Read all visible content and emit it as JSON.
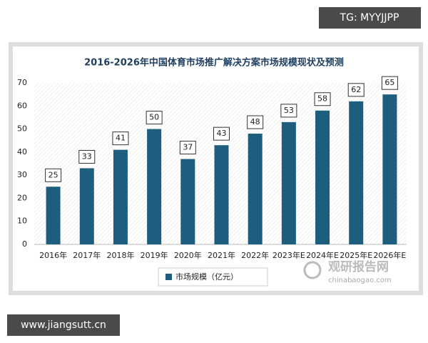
{
  "chart_data": {
    "type": "bar",
    "title": "2016-2026年中国体育市场推广解决方案市场规模现状及预测",
    "categories": [
      "2016年",
      "2017年",
      "2018年",
      "2019年",
      "2020年",
      "2021年",
      "2022年",
      "2023年E",
      "2024年E",
      "2025年E",
      "2026年E"
    ],
    "series": [
      {
        "name": "市场规模（亿元）",
        "color": "#1d5e7e",
        "values": [
          25,
          33,
          41,
          50,
          37,
          43,
          48,
          53,
          58,
          62,
          65
        ]
      }
    ],
    "ylim": [
      0,
      70
    ],
    "yticks": [
      0,
      10,
      20,
      30,
      40,
      50,
      60,
      70
    ],
    "grid": false
  },
  "watermarks": {
    "top_right": "TG: MYYJJPP",
    "bottom_left": "www.jiangsutt.cn",
    "logo": "观研报告网",
    "logo_url": "chinabaogao.com"
  }
}
